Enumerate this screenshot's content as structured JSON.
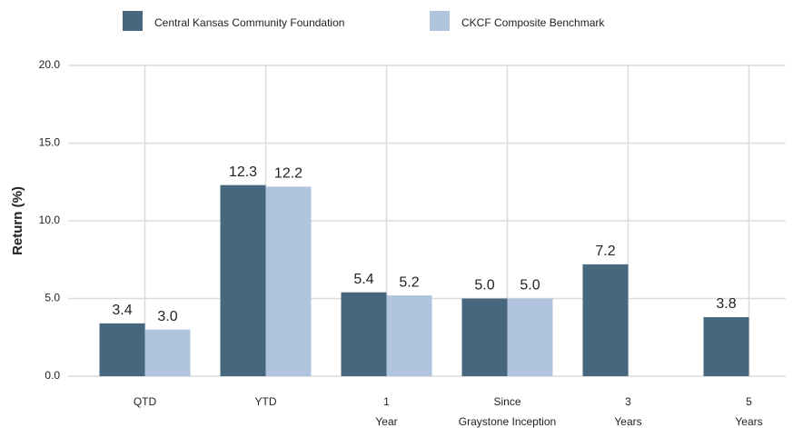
{
  "chart_data": {
    "type": "bar",
    "y_label": "Return (%)",
    "categories": [
      [
        "QTD"
      ],
      [
        "YTD"
      ],
      [
        "1",
        "Year"
      ],
      [
        "Since",
        "Graystone Inception"
      ],
      [
        "3",
        "Years"
      ],
      [
        "5",
        "Years"
      ]
    ],
    "series": [
      {
        "name": "Central Kansas Community Foundation",
        "color": "#46677d",
        "values": [
          3.4,
          12.3,
          5.4,
          5.0,
          7.2,
          3.8
        ],
        "value_labels": [
          "3.4",
          "12.3",
          "5.4",
          "5.0",
          "7.2",
          "3.8"
        ]
      },
      {
        "name": "CKCF Composite Benchmark",
        "color": "#b0c4de",
        "values": [
          3.0,
          12.2,
          5.2,
          5.0,
          null,
          null
        ],
        "value_labels": [
          "3.0",
          "12.2",
          "5.2",
          "5.0",
          null,
          null
        ]
      }
    ],
    "ylim": [
      0,
      20
    ],
    "yticks": [
      {
        "value": 0,
        "label": "0.0"
      },
      {
        "value": 5,
        "label": "5.0"
      },
      {
        "value": 10,
        "label": "10.0"
      },
      {
        "value": 15,
        "label": "15.0"
      },
      {
        "value": 20,
        "label": "20.0"
      }
    ],
    "grid": true,
    "legend": "top"
  }
}
